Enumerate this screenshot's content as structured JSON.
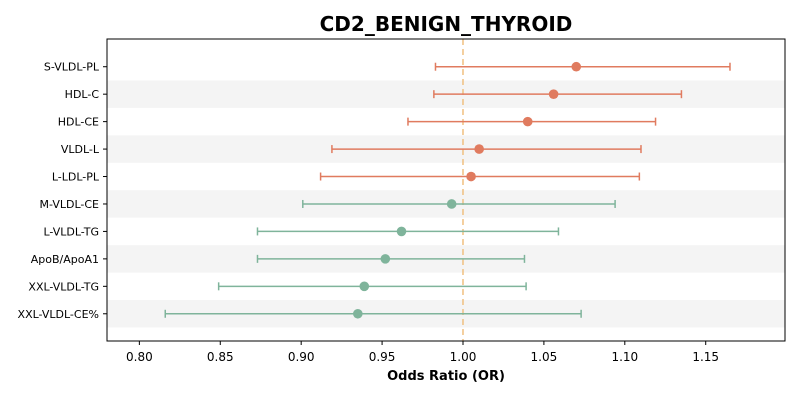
{
  "chart_data": {
    "type": "forest",
    "title": "CD2_BENIGN_THYROID",
    "xlabel": "Odds Ratio (OR)",
    "ylabel": "",
    "xlim": [
      0.78,
      1.199
    ],
    "xticks": [
      0.8,
      0.85,
      0.9,
      0.95,
      1.0,
      1.05,
      1.1,
      1.15
    ],
    "xtick_labels": [
      "0.80",
      "0.85",
      "0.90",
      "0.95",
      "1.00",
      "1.05",
      "1.10",
      "1.15"
    ],
    "reference_line": 1.0,
    "grid": false,
    "row_banding": true,
    "colors": {
      "positive": "#e07b5f",
      "negative": "#7fb49b",
      "reference": "#f0c080",
      "band": "#f4f4f4"
    },
    "rows": [
      {
        "label": "S-VLDL-PL",
        "or": 1.07,
        "lower": 0.983,
        "upper": 1.165
      },
      {
        "label": "HDL-C",
        "or": 1.056,
        "lower": 0.982,
        "upper": 1.135
      },
      {
        "label": "HDL-CE",
        "or": 1.04,
        "lower": 0.966,
        "upper": 1.119
      },
      {
        "label": "VLDL-L",
        "or": 1.01,
        "lower": 0.919,
        "upper": 1.11
      },
      {
        "label": "L-LDL-PL",
        "or": 1.005,
        "lower": 0.912,
        "upper": 1.109
      },
      {
        "label": "M-VLDL-CE",
        "or": 0.993,
        "lower": 0.901,
        "upper": 1.094
      },
      {
        "label": "L-VLDL-TG",
        "or": 0.962,
        "lower": 0.873,
        "upper": 1.059
      },
      {
        "label": "ApoB/ApoA1",
        "or": 0.952,
        "lower": 0.873,
        "upper": 1.038
      },
      {
        "label": "XXL-VLDL-TG",
        "or": 0.939,
        "lower": 0.849,
        "upper": 1.039
      },
      {
        "label": "XXL-VLDL-CE%",
        "or": 0.935,
        "lower": 0.816,
        "upper": 1.073
      }
    ]
  }
}
